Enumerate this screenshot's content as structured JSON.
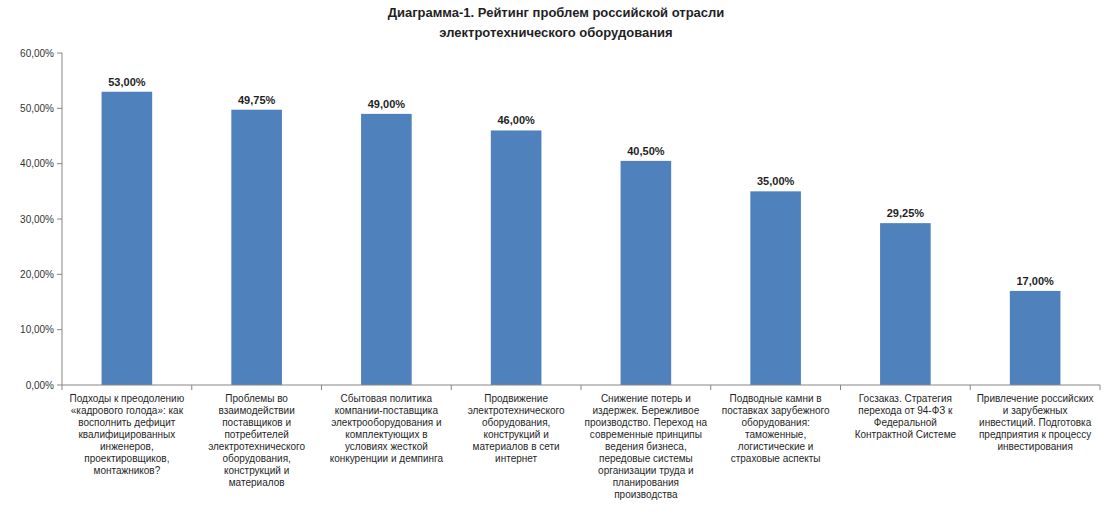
{
  "chart_data": {
    "type": "bar",
    "title": "Диаграмма-1. Рейтинг проблем российской отрасли электротехнического оборудования",
    "categories": [
      "Подходы к преодолению «кадрового голода»: как восполнить дефицит квалифицированных инженеров, проектировщиков, монтажников?",
      "Проблемы во взаимодействии поставщиков и потребителей электротехнического оборудования, конструкций и материалов",
      "Сбытовая политика компании-поставщика электрооборудования и комплектующих в условиях жесткой конкуренции и демпинга",
      "Продвижение электротехнического оборудования, конструкций и материалов в сети интернет",
      "Снижение потерь и издержек. Бережливое производство. Переход на современные принципы ведения бизнеса, передовые системы организации труда и планирования производства",
      "Подводные камни в поставках зарубежного оборудования: таможенные, логистические и страховые аспекты",
      "Госзаказ. Стратегия перехода от 94-ФЗ к Федеральной Контрактной Системе",
      "Привлечение российских и зарубежных инвестиций. Подготовка предприятия к процессу инвестирования"
    ],
    "values": [
      53,
      49.75,
      49,
      46,
      40.5,
      35,
      29.25,
      17
    ],
    "value_labels": [
      "53,00%",
      "49,75%",
      "49,00%",
      "46,00%",
      "40,50%",
      "35,00%",
      "29,25%",
      "17,00%"
    ],
    "color": "#4f81bd",
    "ylim": [
      0,
      60
    ],
    "yticks": [
      {
        "value": 0,
        "label": "0,00%"
      },
      {
        "value": 10,
        "label": "10,00%"
      },
      {
        "value": 20,
        "label": "20,00%"
      },
      {
        "value": 30,
        "label": "30,00%"
      },
      {
        "value": 40,
        "label": "40,00%"
      },
      {
        "value": 50,
        "label": "50,00%"
      },
      {
        "value": 60,
        "label": "60,00%"
      }
    ],
    "grid": false,
    "data_labels": true
  }
}
